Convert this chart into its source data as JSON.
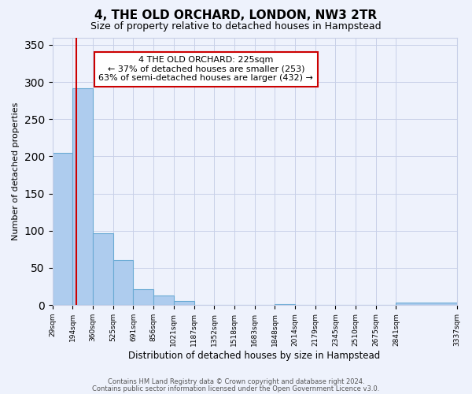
{
  "title": "4, THE OLD ORCHARD, LONDON, NW3 2TR",
  "subtitle": "Size of property relative to detached houses in Hampstead",
  "xlabel": "Distribution of detached houses by size in Hampstead",
  "ylabel": "Number of detached properties",
  "bar_heights": [
    205,
    292,
    97,
    60,
    21,
    13,
    5,
    0,
    0,
    0,
    0,
    1,
    0,
    0,
    0,
    0,
    0,
    3
  ],
  "bin_edges": [
    29,
    194,
    360,
    525,
    691,
    856,
    1021,
    1187,
    1352,
    1518,
    1683,
    1848,
    2014,
    2179,
    2345,
    2510,
    2675,
    2841,
    3337
  ],
  "tick_labels": [
    "29sqm",
    "194sqm",
    "360sqm",
    "525sqm",
    "691sqm",
    "856sqm",
    "1021sqm",
    "1187sqm",
    "1352sqm",
    "1518sqm",
    "1683sqm",
    "1848sqm",
    "2014sqm",
    "2179sqm",
    "2345sqm",
    "2510sqm",
    "2675sqm",
    "2841sqm",
    "3337sqm"
  ],
  "bar_color": "#aeccee",
  "bar_edge_color": "#6aaad4",
  "property_line_x": 225,
  "property_line_color": "#cc0000",
  "ylim": [
    0,
    360
  ],
  "annotation_title": "4 THE OLD ORCHARD: 225sqm",
  "annotation_line1": "← 37% of detached houses are smaller (253)",
  "annotation_line2": "63% of semi-detached houses are larger (432) →",
  "annotation_box_color": "#ffffff",
  "annotation_box_edge": "#cc0000",
  "footer1": "Contains HM Land Registry data © Crown copyright and database right 2024.",
  "footer2": "Contains public sector information licensed under the Open Government Licence v3.0.",
  "background_color": "#eef2fc",
  "grid_color": "#c8d0e8"
}
